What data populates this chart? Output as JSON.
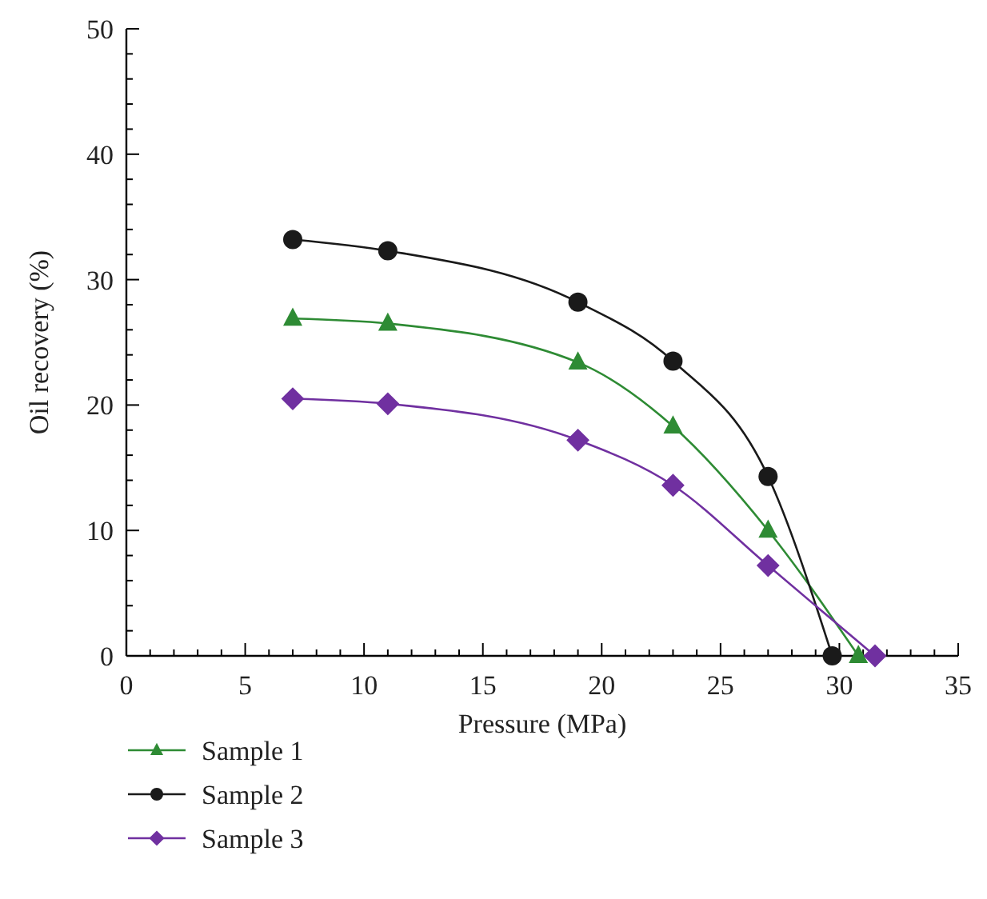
{
  "chart_data": {
    "type": "line",
    "xlabel": "Pressure (MPa)",
    "ylabel": "Oil recovery (%)",
    "xlim": [
      0,
      35
    ],
    "ylim": [
      0,
      50
    ],
    "xticks": [
      0,
      {
        "value": 1,
        "label": null
      },
      {
        "value": 2,
        "label": null
      },
      {
        "value": 3,
        "label": null
      },
      {
        "value": 4,
        "label": null
      },
      5,
      {
        "value": 6,
        "label": null
      },
      {
        "value": 7,
        "label": null
      },
      {
        "value": 8,
        "label": null
      },
      {
        "value": 9,
        "label": null
      },
      10,
      {
        "value": 11,
        "label": null
      },
      {
        "value": 12,
        "label": null
      },
      {
        "value": 13,
        "label": null
      },
      {
        "value": 14,
        "label": null
      },
      15,
      {
        "value": 16,
        "label": null
      },
      {
        "value": 17,
        "label": null
      },
      {
        "value": 18,
        "label": null
      },
      {
        "value": 19,
        "label": null
      },
      20,
      {
        "value": 21,
        "label": null
      },
      {
        "value": 22,
        "label": null
      },
      {
        "value": 23,
        "label": null
      },
      {
        "value": 24,
        "label": null
      },
      25,
      {
        "value": 26,
        "label": null
      },
      {
        "value": 27,
        "label": null
      },
      {
        "value": 28,
        "label": null
      },
      {
        "value": 29,
        "label": null
      },
      30,
      {
        "value": 31,
        "label": null
      },
      {
        "value": 32,
        "label": null
      },
      {
        "value": 33,
        "label": null
      },
      {
        "value": 34,
        "label": null
      },
      35
    ],
    "yticks": [
      0,
      {
        "value": 2,
        "label": null
      },
      {
        "value": 4,
        "label": null
      },
      {
        "value": 6,
        "label": null
      },
      {
        "value": 8,
        "label": null
      },
      10,
      {
        "value": 12,
        "label": null
      },
      {
        "value": 14,
        "label": null
      },
      {
        "value": 16,
        "label": null
      },
      {
        "value": 18,
        "label": null
      },
      20,
      {
        "value": 22,
        "label": null
      },
      {
        "value": 24,
        "label": null
      },
      {
        "value": 26,
        "label": null
      },
      {
        "value": 28,
        "label": null
      },
      30,
      {
        "value": 32,
        "label": null
      },
      {
        "value": 34,
        "label": null
      },
      {
        "value": 36,
        "label": null
      },
      {
        "value": 38,
        "label": null
      },
      40,
      {
        "value": 42,
        "label": null
      },
      {
        "value": 44,
        "label": null
      },
      {
        "value": 46,
        "label": null
      },
      {
        "value": 48,
        "label": null
      },
      50
    ],
    "grid": false,
    "legend": "bottom left",
    "line_style": "solid",
    "series": [
      {
        "name": "Sample 1",
        "color": "#2e8b34",
        "marker": "triangle",
        "x": [
          7,
          11,
          19,
          23,
          27,
          30.8
        ],
        "values": [
          26.9,
          26.5,
          23.4,
          18.3,
          10.0,
          0
        ]
      },
      {
        "name": "Sample 2",
        "color": "#1a1a1a",
        "marker": "circle",
        "x": [
          7,
          11,
          19,
          23,
          27,
          29.7
        ],
        "values": [
          33.2,
          32.3,
          28.2,
          23.5,
          14.3,
          0
        ]
      },
      {
        "name": "Sample 3",
        "color": "#7030a0",
        "marker": "diamond",
        "x": [
          7,
          11,
          19,
          23,
          27,
          31.5
        ],
        "values": [
          20.5,
          20.1,
          17.2,
          13.6,
          7.2,
          0
        ]
      }
    ]
  }
}
